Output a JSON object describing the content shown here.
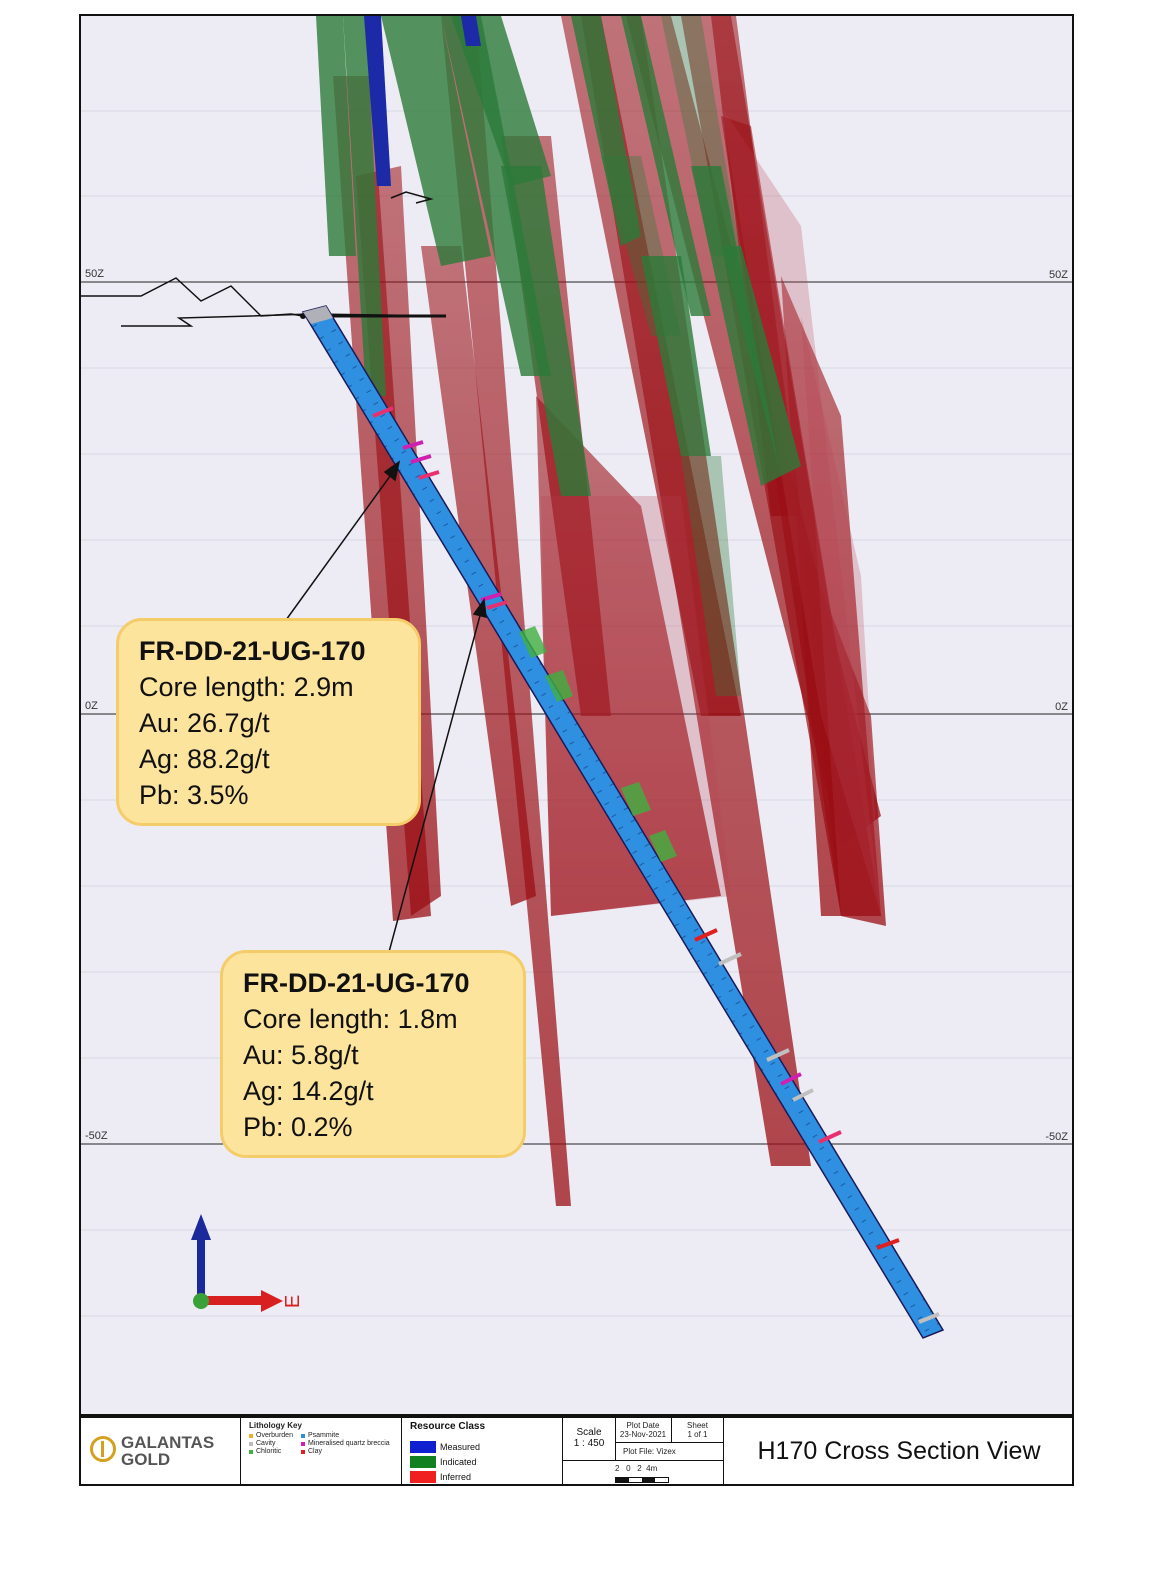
{
  "section": {
    "elevations": [
      "50Z",
      "0Z",
      "-50Z"
    ],
    "axis_label": "E"
  },
  "callouts": [
    {
      "title": "FR-DD-21-UG-170",
      "lines": [
        "Core length: 2.9m",
        "Au: 26.7g/t",
        "Ag: 88.2g/t",
        "Pb: 3.5%"
      ]
    },
    {
      "title": "FR-DD-21-UG-170",
      "lines": [
        "Core length: 1.8m",
        "Au: 5.8g/t",
        "Ag: 14.2g/t",
        "Pb: 0.2%"
      ]
    }
  ],
  "footer": {
    "logo": {
      "line1": "GALANTAS",
      "line2": "GOLD"
    },
    "lithology": {
      "title": "Lithology Key",
      "items": [
        {
          "label": "Overburden",
          "color": "#e8b030"
        },
        {
          "label": "Psammite",
          "color": "#2a8fd8"
        },
        {
          "label": "Cavity",
          "color": "#bbbbbb"
        },
        {
          "label": "Mineralised quartz breccia",
          "color": "#d020b0"
        },
        {
          "label": "Chloritic",
          "color": "#40b040"
        },
        {
          "label": "Clay",
          "color": "#e02020"
        }
      ]
    },
    "resource": {
      "title": "Resource Class",
      "items": [
        {
          "label": "Measured",
          "color": "#1020d0"
        },
        {
          "label": "Indicated",
          "color": "#108020"
        },
        {
          "label": "Inferred",
          "color": "#f02020"
        }
      ]
    },
    "scale": {
      "label": "Scale",
      "value": "1 : 450",
      "bar": "2   0   2  4m"
    },
    "plot_date": {
      "label": "Plot Date",
      "value": "23-Nov-2021"
    },
    "sheet": {
      "label": "Sheet",
      "value": "1 of 1"
    },
    "plot_file": "Plot File: Vizex",
    "title": "H170 Cross Section View"
  },
  "colors": {
    "inferred": "#9a0e14",
    "indicated": "#2c7a3a",
    "measured": "#1c2aa8",
    "drillhole": "#2f8fe0"
  }
}
